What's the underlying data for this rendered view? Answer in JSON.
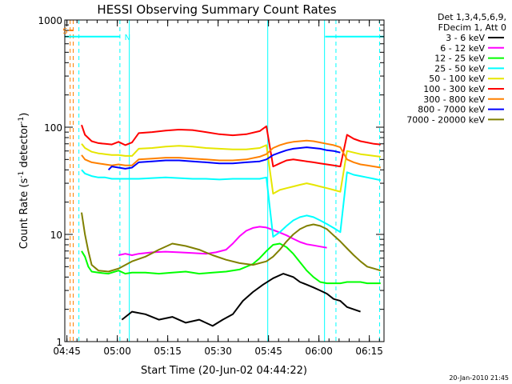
{
  "chart_data": {
    "type": "line",
    "title": "HESSI Observing Summary Count Rates",
    "xlabel": "Start Time (20-Jun-02 04:44:22)",
    "ylabel_prefix": "Count Rate (s",
    "ylabel_sup1": "-1",
    "ylabel_mid": " detector",
    "ylabel_sup2": "-1",
    "ylabel_suffix": ")",
    "x_unit": "minutes since 04:44:22",
    "xlim": [
      0,
      95
    ],
    "ylim": [
      1,
      1000
    ],
    "y_scale": "log",
    "x_ticks": [
      {
        "value": 0.63,
        "label": "04:45"
      },
      {
        "value": 15.63,
        "label": "05:00"
      },
      {
        "value": 30.63,
        "label": "05:15"
      },
      {
        "value": 45.63,
        "label": "05:30"
      },
      {
        "value": 60.63,
        "label": "05:45"
      },
      {
        "value": 75.63,
        "label": "06:00"
      },
      {
        "value": 90.63,
        "label": "06:15"
      }
    ],
    "y_ticks": [
      {
        "value": 1,
        "label": "1"
      },
      {
        "value": 10,
        "label": "10"
      },
      {
        "value": 100,
        "label": "100"
      },
      {
        "value": 1000,
        "label": "1000"
      }
    ],
    "legend": {
      "placement": "right",
      "header": [
        "Det 1,3,4,5,6,9,",
        "FDecim 1, Att 0"
      ]
    },
    "series": [
      {
        "name": "3 - 6 keV",
        "color": "#000000",
        "x": [
          17,
          20,
          24,
          28,
          32,
          36,
          40,
          44,
          47,
          50,
          53,
          56,
          59,
          62,
          65,
          68,
          70,
          72,
          74,
          76,
          78,
          80,
          82,
          84,
          86,
          88
        ],
        "y": [
          1.6,
          1.9,
          1.8,
          1.6,
          1.7,
          1.5,
          1.6,
          1.4,
          1.6,
          1.8,
          2.4,
          2.9,
          3.4,
          3.9,
          4.3,
          4.0,
          3.6,
          3.4,
          3.2,
          3.0,
          2.8,
          2.5,
          2.4,
          2.1,
          2.0,
          1.9
        ]
      },
      {
        "name": "6 - 12 keV",
        "color": "#ff00ff",
        "x": [
          16,
          18,
          20,
          22,
          26,
          30,
          34,
          38,
          42,
          45,
          48,
          50,
          52,
          54,
          56,
          58,
          60,
          62,
          64,
          66,
          68,
          70,
          72,
          74,
          76,
          78
        ],
        "y": [
          6.4,
          6.6,
          6.4,
          6.6,
          6.8,
          6.9,
          6.8,
          6.7,
          6.6,
          6.8,
          7.2,
          8.2,
          9.6,
          10.8,
          11.5,
          11.8,
          11.6,
          11.0,
          10.4,
          9.8,
          9.1,
          8.5,
          8.1,
          7.9,
          7.7,
          7.5
        ]
      },
      {
        "name": "12 - 25 keV",
        "color": "#00ff00",
        "x": [
          5,
          6,
          7,
          8,
          10,
          13,
          16,
          18,
          20,
          24,
          28,
          32,
          36,
          40,
          44,
          48,
          52,
          56,
          58,
          60,
          62,
          64,
          66,
          68,
          70,
          72,
          74,
          76,
          78,
          80,
          82,
          84,
          86,
          88,
          90,
          92,
          94
        ],
        "y": [
          7.0,
          6.2,
          5.0,
          4.5,
          4.4,
          4.3,
          4.6,
          4.3,
          4.4,
          4.4,
          4.3,
          4.4,
          4.5,
          4.3,
          4.4,
          4.5,
          4.7,
          5.3,
          6.0,
          7.0,
          8.0,
          8.2,
          7.6,
          6.6,
          5.5,
          4.6,
          4.0,
          3.6,
          3.5,
          3.5,
          3.5,
          3.6,
          3.6,
          3.6,
          3.5,
          3.5,
          3.5
        ]
      },
      {
        "name": "25 - 50 keV",
        "color": "#00ffff",
        "x": [
          5,
          6,
          8,
          10,
          12,
          14,
          16,
          18,
          20,
          22,
          26,
          30,
          34,
          38,
          42,
          46,
          50,
          54,
          58,
          60,
          62,
          64,
          66,
          68,
          70,
          72,
          74,
          76,
          78,
          80,
          82,
          84,
          86,
          88,
          90,
          92,
          94
        ],
        "y": [
          40,
          37,
          35,
          34,
          34,
          33,
          33,
          33,
          33,
          33,
          33.5,
          34,
          33.5,
          33,
          33,
          32.5,
          33,
          33,
          33,
          34,
          9.5,
          10.5,
          12,
          13.5,
          14.5,
          15,
          14.5,
          13.5,
          12.5,
          11.5,
          10.5,
          38,
          36,
          35,
          34,
          33,
          32
        ]
      },
      {
        "name": "50 - 100 keV",
        "color": "#e6e600",
        "x": [
          5,
          6,
          8,
          10,
          12,
          14,
          16,
          18,
          20,
          22,
          26,
          30,
          34,
          38,
          42,
          46,
          50,
          54,
          58,
          60,
          62,
          64,
          66,
          68,
          70,
          72,
          74,
          76,
          78,
          80,
          82,
          84,
          86,
          88,
          90,
          92,
          94
        ],
        "y": [
          70,
          64,
          59,
          57,
          56,
          55,
          55,
          54,
          54,
          63,
          64,
          66,
          67,
          66,
          64,
          63,
          62,
          62,
          64,
          68,
          24,
          26,
          27,
          28,
          29,
          30,
          29,
          28,
          27,
          26,
          25,
          60,
          58,
          56,
          55,
          54,
          53
        ]
      },
      {
        "name": "100 - 300 keV",
        "color": "#ff0000",
        "x": [
          5,
          6,
          8,
          10,
          12,
          14,
          16,
          18,
          20,
          22,
          26,
          30,
          34,
          38,
          42,
          46,
          50,
          54,
          58,
          60,
          62,
          64,
          66,
          68,
          70,
          72,
          74,
          76,
          78,
          80,
          82,
          84,
          86,
          88,
          90,
          92,
          94
        ],
        "y": [
          105,
          85,
          74,
          71,
          70,
          69,
          73,
          68,
          72,
          88,
          90,
          93,
          95,
          94,
          90,
          86,
          84,
          86,
          92,
          102,
          43,
          46,
          49,
          50,
          49,
          48,
          47,
          46,
          45,
          44,
          43,
          85,
          78,
          74,
          72,
          70,
          69
        ]
      },
      {
        "name": "300 - 800 keV",
        "color": "#ff8000",
        "x": [
          5,
          6,
          8,
          10,
          12,
          14,
          16,
          18,
          20,
          22,
          26,
          30,
          34,
          38,
          42,
          46,
          50,
          54,
          58,
          60,
          62,
          64,
          66,
          68,
          70,
          72,
          74,
          76,
          78,
          80,
          82,
          84,
          86,
          88,
          90,
          92,
          94
        ],
        "y": [
          55,
          50,
          47,
          46,
          45,
          44,
          45,
          44,
          44,
          50,
          51,
          52,
          52,
          51,
          50,
          49,
          49,
          50,
          53,
          56,
          64,
          68,
          71,
          73,
          74,
          75,
          74,
          72,
          70,
          68,
          65,
          50,
          47,
          45,
          44,
          43,
          42
        ]
      },
      {
        "name": "800 - 7000 keV",
        "color": "#0000ff",
        "x": [
          13,
          14,
          16,
          18,
          20,
          22,
          26,
          30,
          34,
          38,
          42,
          46,
          50,
          54,
          58,
          60,
          62,
          64,
          66,
          68,
          70,
          72,
          74,
          76,
          78,
          80,
          82
        ],
        "y": [
          40,
          43,
          42,
          41,
          42,
          47,
          48,
          49,
          49,
          48,
          47,
          46,
          46,
          47,
          48,
          50,
          55,
          58,
          61,
          63,
          64,
          65,
          64,
          63,
          61,
          60,
          58
        ]
      },
      {
        "name": "7000 - 20000 keV",
        "color": "#808000",
        "x": [
          5,
          6,
          7,
          8,
          10,
          13,
          16,
          20,
          24,
          28,
          32,
          36,
          40,
          44,
          48,
          52,
          56,
          60,
          62,
          64,
          66,
          68,
          70,
          72,
          74,
          76,
          78,
          80,
          82,
          84,
          86,
          88,
          90,
          92,
          94
        ],
        "y": [
          16,
          10,
          7,
          5.2,
          4.6,
          4.5,
          4.8,
          5.6,
          6.2,
          7.2,
          8.2,
          7.8,
          7.2,
          6.4,
          5.8,
          5.4,
          5.2,
          5.6,
          6.2,
          7.2,
          8.6,
          10.0,
          11.2,
          12.0,
          12.4,
          12.0,
          11.2,
          9.8,
          8.6,
          7.4,
          6.4,
          5.6,
          5.0,
          4.8,
          4.6
        ]
      }
    ],
    "annotations": {
      "level_line": {
        "label": "N",
        "y": 700,
        "segments": [
          [
            0,
            16.5
          ],
          [
            77.5,
            95
          ]
        ],
        "x_label_at": 17.3,
        "color": "#00ffff"
      },
      "marker_s": {
        "label": "S",
        "x": 2.2,
        "y": 800,
        "color": "#ff8000"
      },
      "vlines": [
        {
          "x": 0.0,
          "style": "solid",
          "color": "#00ffff"
        },
        {
          "x": 1.6,
          "style": "dashed",
          "color": "#ff8000"
        },
        {
          "x": 2.5,
          "style": "dashed",
          "color": "#ff8000"
        },
        {
          "x": 4.2,
          "style": "dashed",
          "color": "#00ffff"
        },
        {
          "x": 16.4,
          "style": "dashed",
          "color": "#00ffff"
        },
        {
          "x": 19.2,
          "style": "solid",
          "color": "#00ffff"
        },
        {
          "x": 60.4,
          "style": "solid",
          "color": "#00ffff"
        },
        {
          "x": 77.3,
          "style": "solid",
          "color": "#00ffff"
        },
        {
          "x": 80.7,
          "style": "dashed",
          "color": "#00ffff"
        },
        {
          "x": 93.7,
          "style": "dashed",
          "color": "#00ffff"
        }
      ]
    },
    "footer_timestamp": "20-Jan-2010 21:45"
  }
}
